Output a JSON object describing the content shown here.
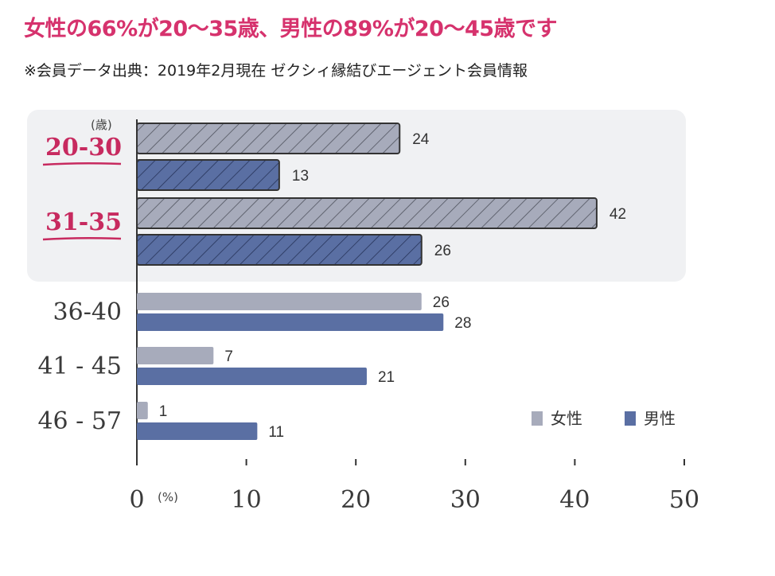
{
  "header": {
    "title": "女性の66%が20〜35歳、男性の89%が20〜45歳です",
    "source": "※会員データ出典：2019年2月現在 ゼクシィ縁結びエージェント会員情報"
  },
  "colors": {
    "title": "#d6326d",
    "highlight_label": "#c72a5f",
    "female": "#a7abbb",
    "male": "#5a6fa3",
    "highlight_bg": "#f0f1f3"
  },
  "chart_data": {
    "type": "bar",
    "orientation": "horizontal",
    "categories": [
      "20-30",
      "31-35",
      "36-40",
      "41 - 45",
      "46 - 57"
    ],
    "highlighted_categories": [
      "20-30",
      "31-35"
    ],
    "series": [
      {
        "name": "女性",
        "values": [
          24,
          42,
          26,
          7,
          1
        ]
      },
      {
        "name": "男性",
        "values": [
          13,
          26,
          28,
          21,
          11
        ]
      }
    ],
    "xlim": [
      0,
      50
    ],
    "xticks": [
      "0",
      "10",
      "20",
      "30",
      "40",
      "50"
    ],
    "x_unit": "(%)",
    "y_unit": "(歳)",
    "legend_position": "bottom-right",
    "grid": false
  }
}
